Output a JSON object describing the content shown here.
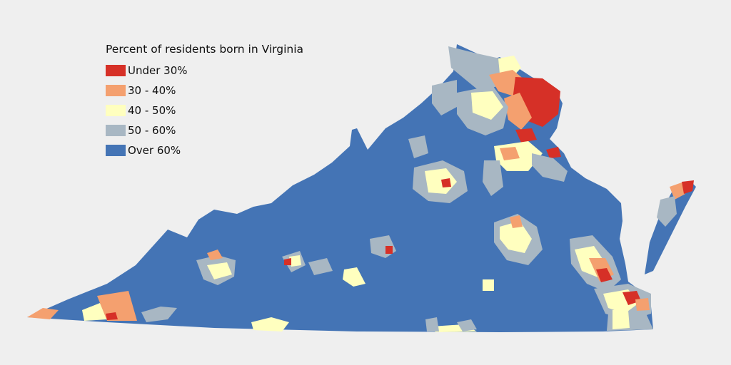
{
  "legend": {
    "title": "Percent of residents born in Virginia",
    "items": [
      {
        "label": "Under 30%",
        "color": "#d63027"
      },
      {
        "label": "30 - 40%",
        "color": "#f4a06f"
      },
      {
        "label": "40 - 50%",
        "color": "#ffffbf"
      },
      {
        "label": "50 - 60%",
        "color": "#a8b7c3"
      },
      {
        "label": "Over 60%",
        "color": "#4474b5"
      }
    ]
  },
  "colors": {
    "background": "#efefef",
    "base": "#4474b5"
  }
}
